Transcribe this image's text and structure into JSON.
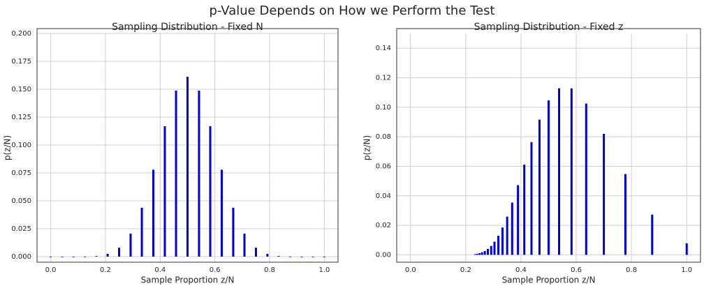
{
  "title": "p-Value Depends on How we Perform the Test",
  "chart_data": [
    {
      "type": "stem",
      "title": "Sampling Distribution - Fixed N",
      "xlabel": "Sample Proportion z/N",
      "ylabel": "p(z/N)",
      "color": "#0000dd",
      "grid": true,
      "x": [
        0,
        0.042,
        0.083,
        0.125,
        0.167,
        0.208,
        0.25,
        0.292,
        0.333,
        0.375,
        0.417,
        0.458,
        0.5,
        0.542,
        0.583,
        0.625,
        0.667,
        0.708,
        0.75,
        0.792,
        0.833,
        0.875,
        0.917,
        0.958,
        1
      ],
      "values": [
        0,
        0,
        0,
        0.0001,
        0.0006,
        0.0025,
        0.008,
        0.0206,
        0.0438,
        0.0779,
        0.1169,
        0.1488,
        0.1612,
        0.1488,
        0.1169,
        0.0779,
        0.0438,
        0.0206,
        0.008,
        0.0025,
        0.0006,
        0.0001,
        0,
        0,
        0
      ],
      "xlim": [
        -0.05,
        1.05
      ],
      "ylim": [
        -0.005,
        0.2
      ],
      "xticks": [
        {
          "value": 0,
          "label": "0.0"
        },
        {
          "value": 0.2,
          "label": "0.2"
        },
        {
          "value": 0.4,
          "label": "0.4"
        },
        {
          "value": 0.6,
          "label": "0.6"
        },
        {
          "value": 0.8,
          "label": "0.8"
        },
        {
          "value": 1,
          "label": "1.0"
        }
      ],
      "yticks": [
        {
          "value": 0,
          "label": "0.000"
        },
        {
          "value": 0.025,
          "label": "0.025"
        },
        {
          "value": 0.05,
          "label": "0.050"
        },
        {
          "value": 0.075,
          "label": "0.075"
        },
        {
          "value": 0.1,
          "label": "0.100"
        },
        {
          "value": 0.125,
          "label": "0.125"
        },
        {
          "value": 0.15,
          "label": "0.150"
        },
        {
          "value": 0.175,
          "label": "0.175"
        },
        {
          "value": 0.2,
          "label": "0.200"
        }
      ]
    },
    {
      "type": "stem",
      "title": "Sampling Distribution - Fixed z",
      "xlabel": "Sample Proportion z/N",
      "ylabel": "p(z/N)",
      "color": "#0000dd",
      "grid": true,
      "x": [
        1,
        0.875,
        0.778,
        0.7,
        0.636,
        0.583,
        0.538,
        0.5,
        0.467,
        0.438,
        0.412,
        0.389,
        0.368,
        0.35,
        0.333,
        0.318,
        0.304,
        0.292,
        0.28,
        0.269,
        0.259,
        0.25,
        0.241,
        0.233
      ],
      "values": [
        0.0078,
        0.0273,
        0.0547,
        0.082,
        0.1025,
        0.1128,
        0.1128,
        0.1047,
        0.0916,
        0.0764,
        0.0611,
        0.0472,
        0.0354,
        0.0259,
        0.0185,
        0.0129,
        0.0089,
        0.006,
        0.004,
        0.0026,
        0.0017,
        0.0011,
        0.0007,
        0.0004
      ],
      "xlim": [
        -0.05,
        1.05
      ],
      "ylim": [
        -0.005,
        0.15
      ],
      "xticks": [
        {
          "value": 0,
          "label": "0.0"
        },
        {
          "value": 0.2,
          "label": "0.2"
        },
        {
          "value": 0.4,
          "label": "0.4"
        },
        {
          "value": 0.6,
          "label": "0.6"
        },
        {
          "value": 0.8,
          "label": "0.8"
        },
        {
          "value": 1,
          "label": "1.0"
        }
      ],
      "yticks": [
        {
          "value": 0,
          "label": "0.00"
        },
        {
          "value": 0.02,
          "label": "0.02"
        },
        {
          "value": 0.04,
          "label": "0.04"
        },
        {
          "value": 0.06,
          "label": "0.06"
        },
        {
          "value": 0.08,
          "label": "0.08"
        },
        {
          "value": 0.1,
          "label": "0.10"
        },
        {
          "value": 0.12,
          "label": "0.12"
        },
        {
          "value": 0.14,
          "label": "0.14"
        }
      ]
    }
  ]
}
